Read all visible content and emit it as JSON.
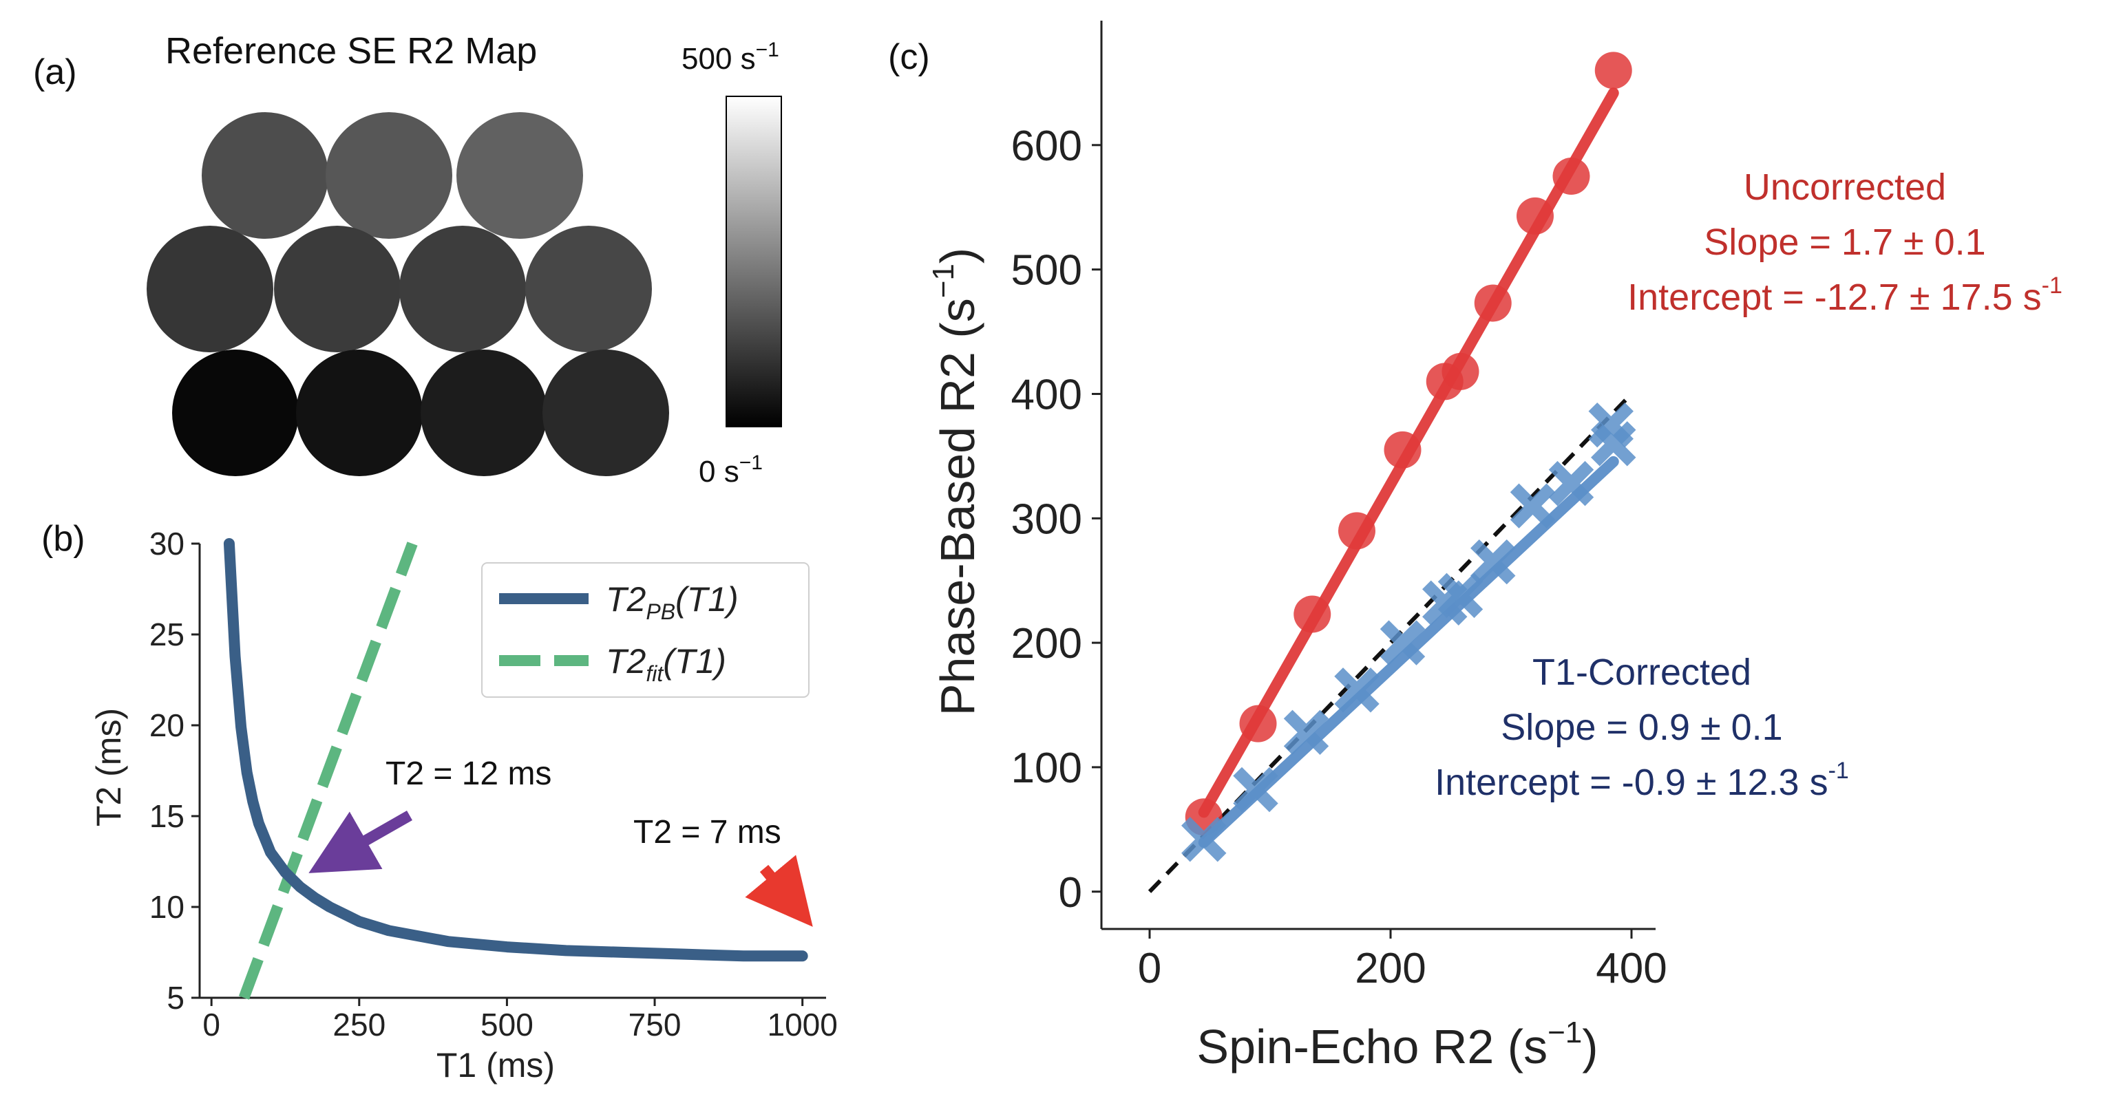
{
  "panel_a": {
    "label": "(a)",
    "title": "Reference SE R2 Map",
    "colorbar_max": "500 s",
    "colorbar_min": "0 s",
    "colorbar_exp": "−1",
    "colorbar_range": [
      0,
      500
    ],
    "circle_values": [
      [
        150,
        170,
        190
      ],
      [
        105,
        115,
        120,
        140
      ],
      [
        15,
        35,
        55,
        80
      ]
    ]
  },
  "chart_data": [
    {
      "id": "b",
      "type": "line",
      "label": "(b)",
      "xlabel": "T1 (ms)",
      "ylabel": "T2 (ms)",
      "xlim": [
        -20,
        1040
      ],
      "ylim": [
        5,
        30
      ],
      "xticks": [
        "0",
        "250",
        "500",
        "750",
        "1000"
      ],
      "yticks": [
        "5",
        "10",
        "15",
        "20",
        "25",
        "30"
      ],
      "series": [
        {
          "name": "T2_PB(T1)",
          "legend_main": "T2",
          "legend_sub": "PB",
          "legend_rest": "(T1)",
          "color": "#3a5f87",
          "x": [
            30,
            40,
            50,
            60,
            70,
            80,
            100,
            125,
            150,
            175,
            200,
            250,
            300,
            400,
            500,
            600,
            700,
            800,
            900,
            1000
          ],
          "y": [
            30.0,
            23.8,
            19.9,
            17.4,
            15.8,
            14.6,
            13.0,
            11.9,
            11.1,
            10.5,
            10.0,
            9.2,
            8.7,
            8.1,
            7.8,
            7.6,
            7.5,
            7.4,
            7.3,
            7.3
          ]
        },
        {
          "name": "T2_fit(T1)",
          "legend_main": "T2",
          "legend_sub": "fit",
          "legend_rest": "(T1)",
          "color": "#5db680",
          "x": [
            55,
            340
          ],
          "y": [
            5.0,
            30.0
          ]
        }
      ],
      "annotations": [
        {
          "text": "T2 = 12 ms",
          "color": "#6a3d9a",
          "arrow_to": [
            170,
            12.3
          ]
        },
        {
          "text": "T2 = 7 ms",
          "color": "#e8392e",
          "arrow_to": [
            1000,
            7.4
          ]
        }
      ]
    },
    {
      "id": "c",
      "type": "scatter",
      "label": "(c)",
      "xlabel": "Spin-Echo R2 (s",
      "ylabel": "Phase-Based R2 (s",
      "unit_exp": "−1",
      "xlim": [
        -40,
        420
      ],
      "ylim": [
        -30,
        700
      ],
      "xticks": [
        "0",
        "200",
        "400"
      ],
      "yticks": [
        "0",
        "100",
        "200",
        "300",
        "400",
        "500",
        "600"
      ],
      "identity_line": [
        [
          0,
          0
        ],
        [
          400,
          400
        ]
      ],
      "series": [
        {
          "name": "Uncorrected",
          "color": "#e03a3a",
          "marker": "circle",
          "x": [
            45,
            90,
            135,
            172,
            210,
            245,
            258,
            285,
            320,
            350,
            385
          ],
          "y": [
            60,
            135,
            223,
            290,
            355,
            410,
            418,
            473,
            543,
            575,
            660
          ],
          "fit": {
            "slope": 1.7,
            "intercept": -12.7,
            "x_range": [
              45,
              385
            ]
          }
        },
        {
          "name": "T1-Corrected",
          "color": "#5b8fc9",
          "marker": "x",
          "x": [
            45,
            88,
            130,
            172,
            210,
            245,
            258,
            285,
            318,
            350,
            383,
            385
          ],
          "y": [
            42,
            82,
            128,
            162,
            200,
            232,
            238,
            265,
            310,
            328,
            375,
            360
          ],
          "fit": {
            "slope": 0.9,
            "intercept": -0.9,
            "x_range": [
              45,
              385
            ]
          }
        }
      ],
      "annotations": [
        {
          "series": "Uncorrected",
          "color": "#c0302c",
          "lines": [
            "Uncorrected",
            "Slope = 1.7 ± 0.1",
            "Intercept = -12.7 ± 17.5 s"
          ],
          "suffix": "-1"
        },
        {
          "series": "T1-Corrected",
          "color": "#1f3068",
          "lines": [
            "T1-Corrected",
            "Slope = 0.9 ± 0.1",
            "Intercept = -0.9 ± 12.3 s"
          ],
          "suffix": "-1"
        }
      ]
    }
  ]
}
